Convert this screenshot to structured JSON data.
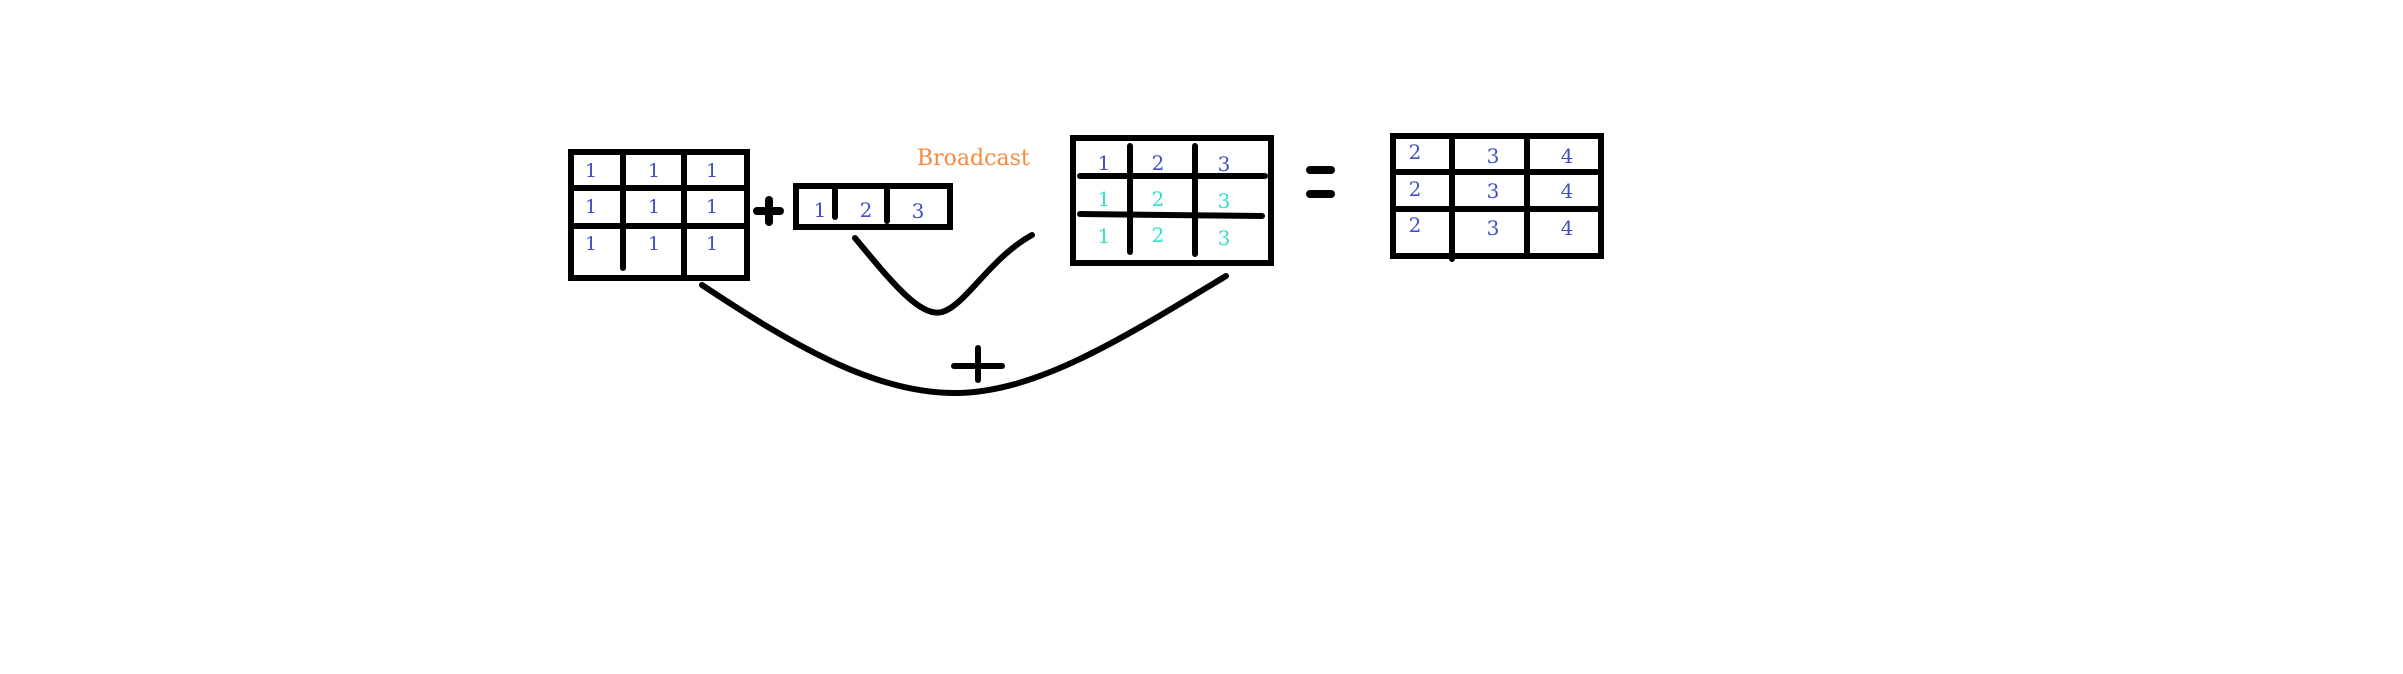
{
  "label_broadcast": "Broadcast",
  "colors": {
    "ink": "#000000",
    "blue_digit": "#3f4fc4",
    "cyan_digit": "#2ee0c8",
    "broadcast": "#f58a3c",
    "background": "#ffffff"
  },
  "operators": {
    "plus": "+",
    "equals": "="
  },
  "matrix_a": [
    [
      "1",
      "1",
      "1"
    ],
    [
      "1",
      "1",
      "1"
    ],
    [
      "1",
      "1",
      "1"
    ]
  ],
  "vector_b": [
    "1",
    "2",
    "3"
  ],
  "matrix_b_broadcast": [
    [
      "1",
      "2",
      "3"
    ],
    [
      "1",
      "2",
      "3"
    ],
    [
      "1",
      "2",
      "3"
    ]
  ],
  "broadcast_row_colors": [
    "blue",
    "cyan",
    "cyan"
  ],
  "matrix_result": [
    [
      "2",
      "3",
      "4"
    ],
    [
      "2",
      "3",
      "4"
    ],
    [
      "2",
      "3",
      "4"
    ]
  ]
}
